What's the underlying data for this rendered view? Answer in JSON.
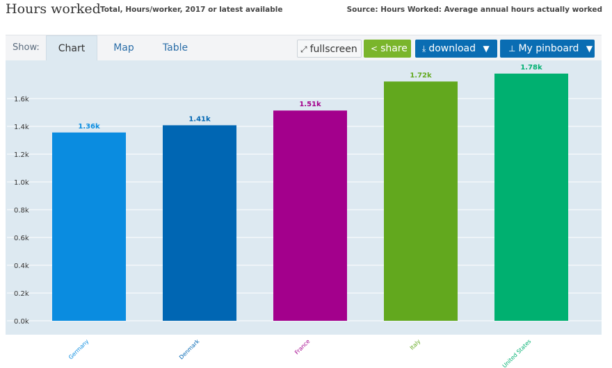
{
  "header": {
    "title": "Hours worked",
    "subtitle": "Total, Hours/worker, 2017 or latest available",
    "source": "Source: Hours Worked: Average annual hours actually worked"
  },
  "toolbar": {
    "show_label": "Show:",
    "tabs": [
      {
        "label": "Chart",
        "active": true
      },
      {
        "label": "Map",
        "active": false
      },
      {
        "label": "Table",
        "active": false
      }
    ],
    "fullscreen_label": "fullscreen",
    "share_label": "share",
    "download_label": "download",
    "pinboard_label": "My pinboard",
    "fullscreen_icon": "expand-icon",
    "share_icon": "share-icon",
    "download_icon": "download-icon",
    "pinboard_icon": "pin-icon",
    "dropdown_icon": "caret-down-icon"
  },
  "colors": {
    "background": "#dde9f1",
    "share": "#7ab52b",
    "action": "#0a6db3"
  },
  "chart_data": {
    "type": "bar",
    "categories": [
      "Germany",
      "Denmark",
      "France",
      "Italy",
      "United States"
    ],
    "values": [
      1356,
      1408,
      1514,
      1723,
      1780
    ],
    "value_labels": [
      "1.36k",
      "1.41k",
      "1.51k",
      "1.72k",
      "1.78k"
    ],
    "colors": [
      "#0a8ce0",
      "#0066b3",
      "#a3008c",
      "#62a81e",
      "#00b070"
    ],
    "yticks": [
      "0.0k",
      "0.2k",
      "0.4k",
      "0.6k",
      "0.8k",
      "1.0k",
      "1.2k",
      "1.4k",
      "1.6k"
    ],
    "ytick_values": [
      0,
      200,
      400,
      600,
      800,
      1000,
      1200,
      1400,
      1600
    ],
    "ylim": [
      0,
      1780
    ],
    "grid": true
  }
}
